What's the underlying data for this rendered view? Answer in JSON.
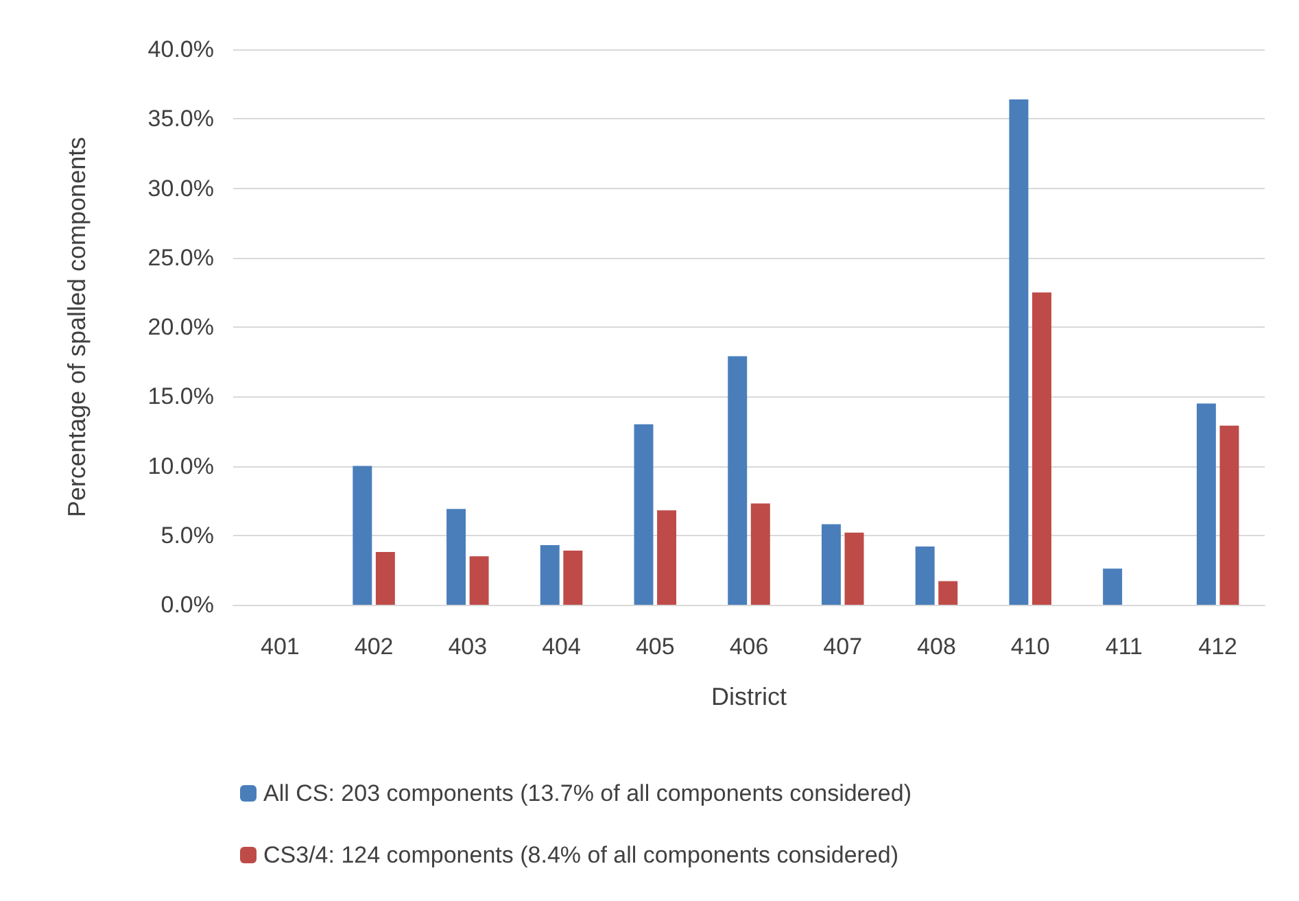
{
  "chart_data": {
    "type": "bar",
    "xlabel": "District",
    "ylabel": "Percentage of spalled components",
    "categories": [
      "401",
      "402",
      "403",
      "404",
      "405",
      "406",
      "407",
      "408",
      "410",
      "411",
      "412"
    ],
    "series": [
      {
        "name": "All CS: 203 components (13.7% of all components considered)",
        "color": "#4a7ebb",
        "values": [
          0,
          10.0,
          6.9,
          4.3,
          13.0,
          17.9,
          5.8,
          4.2,
          36.4,
          2.6,
          14.5
        ]
      },
      {
        "name": "CS3/4: 124 components (8.4% of all components considered)",
        "color": "#be4b48",
        "values": [
          0,
          3.8,
          3.5,
          3.9,
          6.8,
          7.3,
          5.2,
          1.7,
          22.5,
          0,
          12.9
        ]
      }
    ],
    "ylim": [
      0,
      40
    ],
    "yticks": [
      {
        "value": 0,
        "label": "0.0%"
      },
      {
        "value": 5,
        "label": "5.0%"
      },
      {
        "value": 10,
        "label": "10.0%"
      },
      {
        "value": 15,
        "label": "15.0%"
      },
      {
        "value": 20,
        "label": "20.0%"
      },
      {
        "value": 25,
        "label": "25.0%"
      },
      {
        "value": 30,
        "label": "30.0%"
      },
      {
        "value": 35,
        "label": "35.0%"
      },
      {
        "value": 40,
        "label": "40.0%"
      }
    ],
    "grid": "y",
    "legend": "bottom"
  }
}
